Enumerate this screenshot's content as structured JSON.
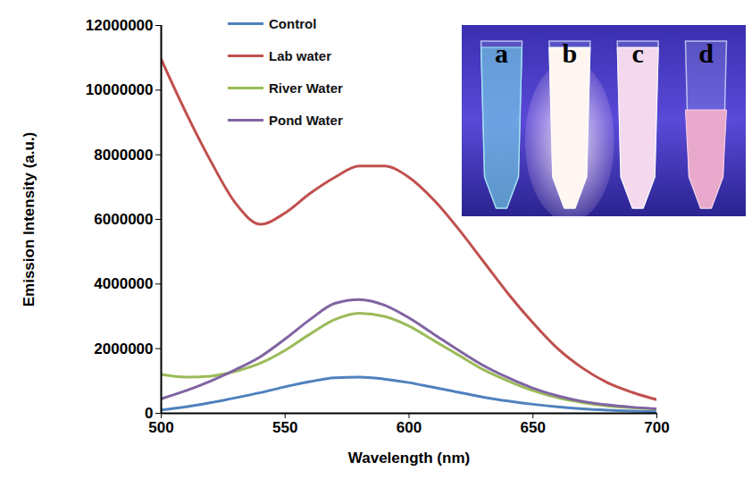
{
  "chart_data": {
    "type": "line",
    "x_label": "Wavelength (nm)",
    "y_label": "Emission Intensity (a.u.)",
    "x": [
      500,
      510,
      520,
      530,
      540,
      550,
      560,
      570,
      580,
      590,
      600,
      610,
      620,
      630,
      640,
      650,
      660,
      670,
      680,
      690,
      700
    ],
    "series": [
      {
        "name": "Control",
        "color": "#4F81BD",
        "values": [
          100000,
          200000,
          330000,
          480000,
          640000,
          820000,
          980000,
          1100000,
          1120000,
          1060000,
          950000,
          800000,
          650000,
          500000,
          380000,
          280000,
          200000,
          140000,
          100000,
          70000,
          50000
        ]
      },
      {
        "name": "Lab water",
        "color": "#C0504D",
        "values": [
          10950000,
          9300000,
          7800000,
          6500000,
          5850000,
          6200000,
          6800000,
          7300000,
          7650000,
          7650000,
          7300000,
          6600000,
          5700000,
          4700000,
          3700000,
          2800000,
          2000000,
          1400000,
          950000,
          650000,
          420000
        ]
      },
      {
        "name": "River Water",
        "color": "#9BBB59",
        "values": [
          1200000,
          1120000,
          1150000,
          1300000,
          1550000,
          1950000,
          2450000,
          2900000,
          3100000,
          3000000,
          2700000,
          2250000,
          1800000,
          1350000,
          1000000,
          700000,
          480000,
          330000,
          230000,
          170000,
          130000
        ]
      },
      {
        "name": "Pond Water",
        "color": "#8064A2",
        "values": [
          450000,
          700000,
          1000000,
          1350000,
          1750000,
          2300000,
          2900000,
          3400000,
          3520000,
          3350000,
          2950000,
          2450000,
          1950000,
          1480000,
          1100000,
          780000,
          540000,
          370000,
          260000,
          190000,
          140000
        ]
      }
    ],
    "xlim": [
      500,
      700
    ],
    "xticks": [
      500,
      550,
      600,
      650,
      700
    ],
    "ylim": [
      0,
      12000000
    ],
    "yticks": [
      0,
      2000000,
      4000000,
      6000000,
      8000000,
      10000000,
      12000000
    ],
    "grid": false,
    "legend": "top-left",
    "annotations": [
      "a",
      "b",
      "c",
      "d"
    ]
  }
}
